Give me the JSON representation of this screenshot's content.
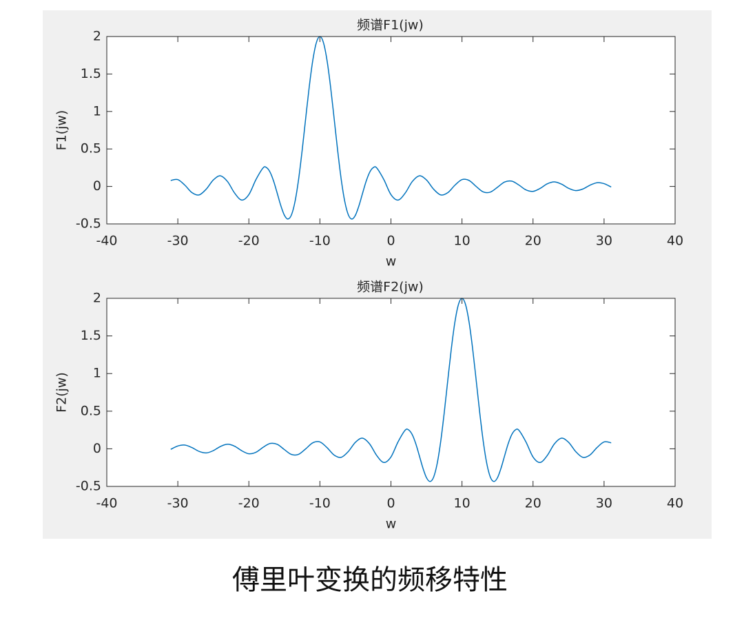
{
  "chart_data": [
    {
      "type": "line",
      "title": "频谱F1(jw)",
      "x_label": "w",
      "y_label": "F1(jw)",
      "xlim": [
        -40,
        40
      ],
      "xticks": [
        -40,
        -30,
        -20,
        -10,
        0,
        10,
        20,
        30,
        40
      ],
      "ylim": [
        -0.5,
        2
      ],
      "yticks": [
        -0.5,
        0,
        0.5,
        1,
        1.5,
        2
      ],
      "x": [
        -31,
        -30,
        -29,
        -28,
        -27,
        -26,
        -25,
        -24,
        -23,
        -22,
        -21,
        -20,
        -19,
        -18,
        -17.5,
        -17,
        -16.5,
        -16,
        -15.5,
        -15,
        -14.5,
        -14,
        -13.5,
        -13,
        -12.5,
        -12,
        -11.5,
        -11,
        -10.5,
        -10,
        -9.5,
        -9,
        -8.5,
        -8,
        -7.5,
        -7,
        -6.5,
        -6,
        -5.5,
        -5,
        -4.5,
        -4,
        -3.5,
        -3,
        -2.5,
        -2,
        -1,
        0,
        1,
        2,
        3,
        4,
        5,
        6,
        7,
        8,
        9,
        10,
        11,
        12,
        13,
        14,
        15,
        16,
        17,
        18,
        19,
        20,
        21,
        22,
        23,
        24,
        25,
        26,
        27,
        28,
        29,
        30,
        31
      ],
      "series": [
        {
          "color": "#0072bd",
          "values": [
            0.0797,
            0.0913,
            0.0158,
            -0.0834,
            -0.1131,
            -0.036,
            0.0867,
            0.1415,
            0.0646,
            -0.0894,
            -0.1818,
            -0.1088,
            0.0916,
            0.2473,
            0.2501,
            0.1877,
            0.0662,
            -0.0931,
            -0.2565,
            -0.3836,
            -0.4345,
            -0.3784,
            -0.2004,
            0.0941,
            0.4788,
            0.9093,
            1.33,
            1.6829,
            1.9177,
            2,
            1.9177,
            1.6829,
            1.33,
            0.9093,
            0.4788,
            0.0941,
            -0.2004,
            -0.3784,
            -0.4345,
            -0.3836,
            -0.2565,
            -0.0931,
            0.0662,
            0.1877,
            0.2501,
            0.2473,
            0.0916,
            -0.1088,
            -0.1818,
            -0.0894,
            0.0646,
            0.1415,
            0.0867,
            -0.036,
            -0.1131,
            -0.0834,
            0.0158,
            0.0913,
            0.0797,
            -0.0008,
            -0.0736,
            -0.0755,
            -0.0106,
            0.0587,
            0.0708,
            0.0194,
            -0.0458,
            -0.0659,
            -0.0261,
            0.0345,
            0.0606,
            0.0311,
            -0.0245,
            -0.0551,
            -0.0348,
            0.0156,
            0.0494,
            0.0373,
            -0.0077
          ]
        }
      ]
    },
    {
      "type": "line",
      "title": "频谱F2(jw)",
      "x_label": "w",
      "y_label": "F2(jw)",
      "xlim": [
        -40,
        40
      ],
      "xticks": [
        -40,
        -30,
        -20,
        -10,
        0,
        10,
        20,
        30,
        40
      ],
      "ylim": [
        -0.5,
        2
      ],
      "yticks": [
        -0.5,
        0,
        0.5,
        1,
        1.5,
        2
      ],
      "x": [
        -31,
        -30,
        -29,
        -28,
        -27,
        -26,
        -25,
        -24,
        -23,
        -22,
        -21,
        -20,
        -19,
        -18,
        -17,
        -16,
        -15,
        -14,
        -13,
        -12,
        -11,
        -10,
        -9,
        -8,
        -7,
        -6,
        -5,
        -4,
        -3,
        -2,
        -1,
        0,
        1,
        2,
        2.5,
        3,
        3.5,
        4,
        4.5,
        5,
        5.5,
        6,
        6.5,
        7,
        7.5,
        8,
        8.5,
        9,
        9.5,
        10,
        10.5,
        11,
        11.5,
        12,
        12.5,
        13,
        13.5,
        14,
        14.5,
        15,
        15.5,
        16,
        16.5,
        17,
        17.5,
        18,
        19,
        20,
        21,
        22,
        23,
        24,
        25,
        26,
        27,
        28,
        29,
        30,
        31
      ],
      "series": [
        {
          "color": "#0072bd",
          "values": [
            -0.0077,
            0.0373,
            0.0494,
            0.0156,
            -0.0348,
            -0.0551,
            -0.0245,
            0.0311,
            0.0606,
            0.0345,
            -0.0261,
            -0.0659,
            -0.0458,
            0.0194,
            0.0708,
            0.0587,
            -0.0106,
            -0.0755,
            -0.0736,
            -0.0008,
            0.0797,
            0.0913,
            0.0158,
            -0.0834,
            -0.1131,
            -0.036,
            0.0867,
            0.1415,
            0.0646,
            -0.0894,
            -0.1818,
            -0.1088,
            0.0916,
            0.2473,
            0.2501,
            0.1877,
            0.0662,
            -0.0931,
            -0.2565,
            -0.3836,
            -0.4345,
            -0.3784,
            -0.2004,
            0.0941,
            0.4788,
            0.9093,
            1.33,
            1.6829,
            1.9177,
            2,
            1.9177,
            1.6829,
            1.33,
            0.9093,
            0.4788,
            0.0941,
            -0.2004,
            -0.3784,
            -0.4345,
            -0.3836,
            -0.2565,
            -0.0931,
            0.0662,
            0.1877,
            0.2501,
            0.2473,
            0.0916,
            -0.1088,
            -0.1818,
            -0.0894,
            0.0646,
            0.1415,
            0.0867,
            -0.036,
            -0.1131,
            -0.0834,
            0.0158,
            0.0913,
            0.0797
          ]
        }
      ]
    }
  ],
  "caption": "傅里叶变换的频移特性"
}
